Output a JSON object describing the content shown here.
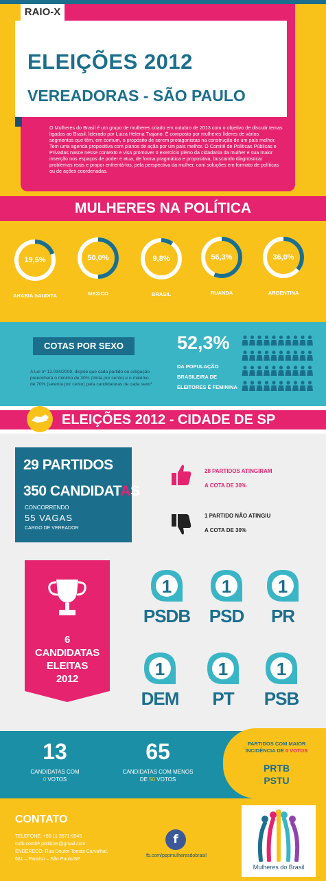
{
  "header": {
    "tag": "RAIO-X",
    "title": "ELEIÇÕES 2012",
    "subtitle": "VEREADORAS - SÃO PAULO",
    "intro": "O Mulheres do Brasil é um grupo de mulheres criado em outubro de 2013 com o objetivo de discutir temas ligados ao Brasil, liderado por Luiza Helena Trajano. É composto por mulheres líderes de vários segmentos que têm, em comum, o propósito de serem protagonistas na construção de um país melhor. Tem uma agenda propositiva com planos de ação por um país melhor. O Comitê de Políticas Públicas e Privadas nasce nesse contexto e visa promover o exercício pleno da cidadania da mulher e sua maior inserção nos espaços de poder e atua, de forma pragmática e propositiva, buscando diagnosticar problemas reais e propor enfrentá-los, pela perspectiva da mulher, com soluções em formato de políticas ou de ações coordenadas."
  },
  "politica": {
    "heading": "MULHERES NA POLÍTICA",
    "countries": [
      {
        "label": "19,5%",
        "name": "ARABIA SAUDITA",
        "value": 19.5
      },
      {
        "label": "50,0%",
        "name": "MEXICO",
        "value": 50.0
      },
      {
        "label": "9,8%",
        "name": "BRASIL",
        "value": 9.8
      },
      {
        "label": "56,3%",
        "name": "RUANDA",
        "value": 56.3
      },
      {
        "label": "36,0%",
        "name": "ARGENTINA",
        "value": 36.0
      }
    ]
  },
  "cotas": {
    "heading": "COTAS POR SEXO",
    "text": "A Lei nº 12.034/2009, dispõe que cada partido ou coligação preencherá o mínimo de 30% (trinta por cento) e o máximo de 70% (setenta por cento) para candidaturas de cada sexo*",
    "percent": "52,3%",
    "desc_1": "DA POPULAÇÃO",
    "desc_2": "BRASILEIRA DE",
    "desc_3": "ELEITORES É FEMININA"
  },
  "cidade": {
    "heading": "ELEIÇÕES 2012 - CIDADE DE SP",
    "partidos": "29 PARTIDOS",
    "candidatas_a": "350 CANDIDAT",
    "candidatas_b": "A",
    "candidatas_c": "S",
    "concorrendo": "CONCORRENDO",
    "vagas": "55 VAGAS",
    "cargo": "CARGO DE VEREADOR",
    "atingiram_1": "28 PARTIDOS ATINGIRAM",
    "atingiram_2": "A COTA DE 30%",
    "nao_atingiu_1": "1 PARTIDO NÃO ATINGIU",
    "nao_atingiu_2": "A COTA DE 30%",
    "eleitas_1": "6",
    "eleitas_2": "CANDIDATAS",
    "eleitas_3": "ELEITAS",
    "eleitas_4": "2012",
    "parties": [
      {
        "count": "1",
        "name": "PSDB"
      },
      {
        "count": "1",
        "name": "PSD"
      },
      {
        "count": "1",
        "name": "PR"
      },
      {
        "count": "1",
        "name": "DEM"
      },
      {
        "count": "1",
        "name": "PT"
      },
      {
        "count": "1",
        "name": "PSB"
      }
    ]
  },
  "stats": {
    "zero_votos_num": "13",
    "zero_votos_1": "CANDIDATAS COM",
    "zero_votos_2a": "0",
    "zero_votos_2b": " VOTOS",
    "menos50_num": "65",
    "menos50_1": "CANDIDATAS COM MENOS",
    "menos50_2a": "DE ",
    "menos50_2b": "50",
    "menos50_2c": " VOTOS",
    "maior_1": "PARTIDOS COM MAIOR",
    "maior_2a": "INCIDÊNCIA DE ",
    "maior_2b": "0 VOTOS",
    "maior_p1": "PRTB",
    "maior_p2": "PSTU"
  },
  "contato": {
    "heading": "CONTATO",
    "tel": "TELEFONE: +55 11 3571-9545",
    "email": "mdb.comitê.politicas@gmail.com",
    "addr_1": "ENDERECO: Rua Doutor Tomás Carvalhal,",
    "addr_2": "681 – Paraíso – São Paulo/SP",
    "fb_glyph": "f",
    "fb_url": "fb.com/pppmulheresdobrasil",
    "logo_text": "Mulheres do Brasil"
  },
  "colors": {
    "pink": "#e5236f",
    "yellow": "#f9c21b",
    "teal": "#3ab5c6",
    "navy": "#1b6f8d"
  }
}
